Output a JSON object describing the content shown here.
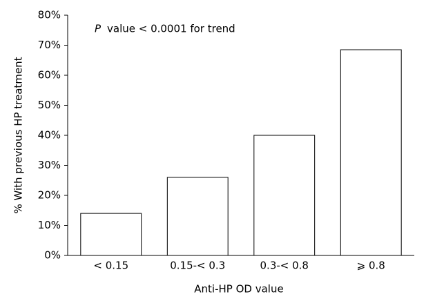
{
  "chart_data": {
    "type": "bar",
    "y_axis_label": "% With previous HP treatment",
    "x_axis_label": "Anti-HP OD value",
    "annotation": {
      "italic": "P",
      "text": "value < 0.0001 for trend"
    },
    "categories": [
      "< 0.15",
      "0.15-< 0.3",
      "0.3-< 0.8",
      "⩾ 0.8"
    ],
    "values": [
      14,
      26,
      40,
      68.5
    ],
    "color": "#ffffff",
    "edge_color": "#000000",
    "ylim": [
      0,
      80
    ],
    "yticks": [
      {
        "value": 0,
        "label": "0%"
      },
      {
        "value": 10,
        "label": "10%"
      },
      {
        "value": 20,
        "label": "20%"
      },
      {
        "value": 30,
        "label": "30%"
      },
      {
        "value": 40,
        "label": "40%"
      },
      {
        "value": 50,
        "label": "50%"
      },
      {
        "value": 60,
        "label": "60%"
      },
      {
        "value": 70,
        "label": "70%"
      },
      {
        "value": 80,
        "label": "80%"
      }
    ],
    "grid": false
  }
}
